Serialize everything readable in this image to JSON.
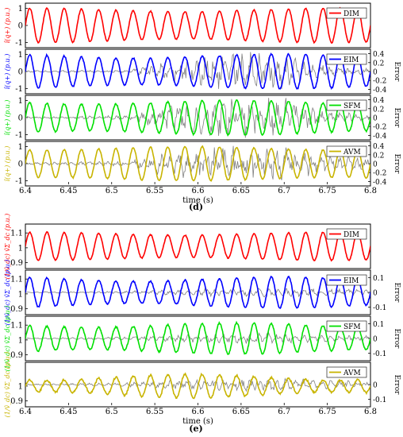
{
  "figure_labels": [
    "(d)",
    "(e)"
  ],
  "chart_data": [
    {
      "type": "line",
      "figure_label": "(d)",
      "xlabel": "time (s)",
      "xlim": [
        6.4,
        6.8
      ],
      "x_ticks": [
        "6.4",
        "6.45",
        "6.5",
        "6.55",
        "6.6",
        "6.65",
        "6.7",
        "6.75",
        "6.8"
      ],
      "right_axis_label": "Error",
      "panels": [
        {
          "ylabel": "î(q+) (p.u.)",
          "ylim": [
            -1.3,
            1.3
          ],
          "y_ticks": [
            "1",
            "0",
            "-1"
          ],
          "right_ticks": [],
          "right_ylim": [
            -0.5,
            0.5
          ],
          "series": [
            {
              "name": "DIM",
              "color": "#ff0000",
              "waveform": {
                "freq_hz": 50,
                "amplitude": 0.9,
                "offset": 0.0,
                "amplitude_jitter": 0.1
              }
            }
          ],
          "error": null
        },
        {
          "ylabel": "î(q+) (p.u.)",
          "ylim": [
            -1.3,
            1.3
          ],
          "y_ticks": [
            "1",
            "0",
            "-1"
          ],
          "right_ylim": [
            -0.5,
            0.5
          ],
          "right_ticks": [
            "0.4",
            "0.2",
            "0",
            "-0.2",
            "-0.4"
          ],
          "series": [
            {
              "name": "EIM",
              "color": "#0000ff",
              "waveform": {
                "freq_hz": 50,
                "amplitude": 0.9,
                "offset": 0.0,
                "amplitude_jitter": 0.12
              }
            }
          ],
          "error": {
            "color": "#808080",
            "envelope": [
              [
                6.4,
                0.02
              ],
              [
                6.52,
                0.03
              ],
              [
                6.55,
                0.12
              ],
              [
                6.6,
                0.3
              ],
              [
                6.65,
                0.4
              ],
              [
                6.7,
                0.3
              ],
              [
                6.75,
                0.12
              ],
              [
                6.8,
                0.05
              ]
            ]
          }
        },
        {
          "ylabel": "î(q+) (p.u.)",
          "ylim": [
            -1.3,
            1.3
          ],
          "y_ticks": [
            "1",
            "0",
            "-1"
          ],
          "right_ylim": [
            -0.5,
            0.5
          ],
          "right_ticks": [
            "0.4",
            "0.2",
            "0",
            "-0.2",
            "-0.4"
          ],
          "series": [
            {
              "name": "SFM",
              "color": "#00e000",
              "waveform": {
                "freq_hz": 50,
                "amplitude": 0.9,
                "offset": 0.0,
                "amplitude_jitter": 0.12
              }
            }
          ],
          "error": {
            "color": "#808080",
            "envelope": [
              [
                6.4,
                0.02
              ],
              [
                6.52,
                0.04
              ],
              [
                6.55,
                0.2
              ],
              [
                6.6,
                0.3
              ],
              [
                6.65,
                0.38
              ],
              [
                6.7,
                0.35
              ],
              [
                6.75,
                0.12
              ],
              [
                6.8,
                0.05
              ]
            ]
          }
        },
        {
          "ylabel": "î(q+) (p.u.)",
          "ylim": [
            -1.3,
            1.3
          ],
          "y_ticks": [
            "1",
            "0",
            "-1"
          ],
          "right_ylim": [
            -0.5,
            0.5
          ],
          "right_ticks": [
            "0.4",
            "0.2",
            "0",
            "-0.2",
            "-0.4"
          ],
          "series": [
            {
              "name": "AVM",
              "color": "#c8b400",
              "waveform": {
                "freq_hz": 50,
                "amplitude": 0.9,
                "offset": 0.0,
                "amplitude_jitter": 0.1
              }
            }
          ],
          "error": {
            "color": "#808080",
            "envelope": [
              [
                6.4,
                0.02
              ],
              [
                6.52,
                0.05
              ],
              [
                6.55,
                0.2
              ],
              [
                6.6,
                0.28
              ],
              [
                6.65,
                0.35
              ],
              [
                6.7,
                0.3
              ],
              [
                6.75,
                0.15
              ],
              [
                6.8,
                0.1
              ]
            ]
          }
        }
      ]
    },
    {
      "type": "line",
      "figure_label": "(e)",
      "xlabel": "time (s)",
      "xlim": [
        6.4,
        6.8
      ],
      "x_ticks": [
        "6.4",
        "6.45",
        "6.5",
        "6.55",
        "6.6",
        "6.65",
        "6.7",
        "6.75",
        "6.8"
      ],
      "right_axis_label": "Error",
      "panels": [
        {
          "ylabel": "(1/v̂_dc) v̂Σ_dc (p.u.)",
          "ylim": [
            0.86,
            1.16
          ],
          "y_ticks": [
            "1.1",
            "1",
            "0.9"
          ],
          "right_ticks": [],
          "right_ylim": [
            -0.15,
            0.15
          ],
          "series": [
            {
              "name": "DIM",
              "color": "#ff0000",
              "waveform": {
                "freq_hz": 50,
                "amplitude": 0.085,
                "offset": 1.01,
                "amplitude_jitter": 0.01
              }
            }
          ],
          "error": null
        },
        {
          "ylabel": "(1/v̂_dc) v̂Σ_dc (p.u.)",
          "ylim": [
            0.86,
            1.16
          ],
          "y_ticks": [
            "1.1",
            "1",
            "0.9"
          ],
          "right_ylim": [
            -0.15,
            0.15
          ],
          "right_ticks": [
            "0.1",
            "0",
            "-0.1"
          ],
          "series": [
            {
              "name": "EIM",
              "color": "#0000ff",
              "waveform": {
                "freq_hz": 50,
                "amplitude": 0.09,
                "offset": 1.01,
                "amplitude_jitter": 0.015
              }
            }
          ],
          "error": {
            "color": "#808080",
            "envelope": [
              [
                6.4,
                0.003
              ],
              [
                6.5,
                0.006
              ],
              [
                6.55,
                0.012
              ],
              [
                6.6,
                0.02
              ],
              [
                6.65,
                0.025
              ],
              [
                6.7,
                0.025
              ],
              [
                6.75,
                0.02
              ],
              [
                6.8,
                0.015
              ]
            ]
          }
        },
        {
          "ylabel": "(1/v̂_dc) v̂Σ_dc (p.u.)",
          "ylim": [
            0.86,
            1.16
          ],
          "y_ticks": [
            "1.1",
            "1",
            "0.9"
          ],
          "right_ylim": [
            -0.15,
            0.15
          ],
          "right_ticks": [
            "0.1",
            "0",
            "-0.1"
          ],
          "series": [
            {
              "name": "SFM",
              "color": "#00e000",
              "waveform": {
                "freq_hz": 50,
                "amplitude": 0.09,
                "offset": 1.01,
                "amplitude_jitter": 0.015
              }
            }
          ],
          "error": {
            "color": "#808080",
            "envelope": [
              [
                6.4,
                0.003
              ],
              [
                6.5,
                0.008
              ],
              [
                6.55,
                0.015
              ],
              [
                6.6,
                0.022
              ],
              [
                6.65,
                0.03
              ],
              [
                6.7,
                0.03
              ],
              [
                6.75,
                0.02
              ],
              [
                6.8,
                0.015
              ]
            ]
          }
        },
        {
          "ylabel": "(1/v̂_dc) v̂Σ_dc (p.u.)",
          "ylim": [
            0.86,
            1.16
          ],
          "y_ticks": [
            "1",
            "0.9"
          ],
          "right_ylim": [
            -0.15,
            0.15
          ],
          "right_ticks": [
            "0",
            "-0.1"
          ],
          "series": [
            {
              "name": "AVM",
              "color": "#c8b400",
              "waveform": {
                "freq_hz": 50,
                "amplitude": 0.06,
                "offset": 1.0,
                "amplitude_jitter": 0.02
              }
            }
          ],
          "error": {
            "color": "#808080",
            "envelope": [
              [
                6.4,
                0.003
              ],
              [
                6.5,
                0.01
              ],
              [
                6.55,
                0.02
              ],
              [
                6.6,
                0.03
              ],
              [
                6.65,
                0.035
              ],
              [
                6.7,
                0.035
              ],
              [
                6.75,
                0.025
              ],
              [
                6.8,
                0.02
              ]
            ]
          }
        }
      ]
    }
  ]
}
